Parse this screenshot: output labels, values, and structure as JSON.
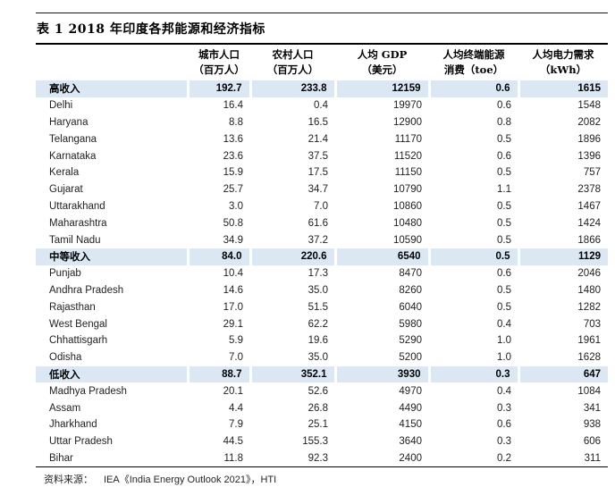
{
  "table": {
    "title": "表 1 2018 年印度各邦能源和经济指标",
    "columns": [
      {
        "line1": "",
        "line2": ""
      },
      {
        "line1": "城市人口",
        "line2": "（百万人）"
      },
      {
        "line1": "农村人口",
        "line2": "（百万人）"
      },
      {
        "line1": "人均 GDP",
        "line2": "（美元）"
      },
      {
        "line1": "人均终端能源",
        "line2": "消费（toe）"
      },
      {
        "line1": "人均电力需求",
        "line2": "（kWh）"
      }
    ],
    "rows": [
      {
        "label": "高收入",
        "values": [
          "192.7",
          "233.8",
          "12159",
          "0.6",
          "1615"
        ],
        "highlight": true
      },
      {
        "label": "Delhi",
        "values": [
          "16.4",
          "0.4",
          "19970",
          "0.6",
          "1548"
        ],
        "highlight": false
      },
      {
        "label": "Haryana",
        "values": [
          "8.8",
          "16.5",
          "12900",
          "0.8",
          "2082"
        ],
        "highlight": false
      },
      {
        "label": "Telangana",
        "values": [
          "13.6",
          "21.4",
          "11170",
          "0.5",
          "1896"
        ],
        "highlight": false
      },
      {
        "label": "Karnataka",
        "values": [
          "23.6",
          "37.5",
          "11520",
          "0.6",
          "1396"
        ],
        "highlight": false
      },
      {
        "label": "Kerala",
        "values": [
          "15.9",
          "17.5",
          "11150",
          "0.5",
          "757"
        ],
        "highlight": false
      },
      {
        "label": "Gujarat",
        "values": [
          "25.7",
          "34.7",
          "10790",
          "1.1",
          "2378"
        ],
        "highlight": false
      },
      {
        "label": "Uttarakhand",
        "values": [
          "3.0",
          "7.0",
          "10860",
          "0.5",
          "1467"
        ],
        "highlight": false
      },
      {
        "label": "Maharashtra",
        "values": [
          "50.8",
          "61.6",
          "10480",
          "0.5",
          "1424"
        ],
        "highlight": false
      },
      {
        "label": "Tamil Nadu",
        "values": [
          "34.9",
          "37.2",
          "10590",
          "0.5",
          "1866"
        ],
        "highlight": false
      },
      {
        "label": "中等收入",
        "values": [
          "84.0",
          "220.6",
          "6540",
          "0.5",
          "1129"
        ],
        "highlight": true
      },
      {
        "label": "Punjab",
        "values": [
          "10.4",
          "17.3",
          "8470",
          "0.6",
          "2046"
        ],
        "highlight": false
      },
      {
        "label": "Andhra Pradesh",
        "values": [
          "14.6",
          "35.0",
          "8260",
          "0.5",
          "1480"
        ],
        "highlight": false
      },
      {
        "label": "Rajasthan",
        "values": [
          "17.0",
          "51.5",
          "6040",
          "0.5",
          "1282"
        ],
        "highlight": false
      },
      {
        "label": "West Bengal",
        "values": [
          "29.1",
          "62.2",
          "5980",
          "0.4",
          "703"
        ],
        "highlight": false
      },
      {
        "label": "Chhattisgarh",
        "values": [
          "5.9",
          "19.6",
          "5290",
          "1.0",
          "1961"
        ],
        "highlight": false
      },
      {
        "label": "Odisha",
        "values": [
          "7.0",
          "35.0",
          "5200",
          "1.0",
          "1628"
        ],
        "highlight": false
      },
      {
        "label": "低收入",
        "values": [
          "88.7",
          "352.1",
          "3930",
          "0.3",
          "647"
        ],
        "highlight": true
      },
      {
        "label": "Madhya Pradesh",
        "values": [
          "20.1",
          "52.6",
          "4970",
          "0.4",
          "1084"
        ],
        "highlight": false
      },
      {
        "label": "Assam",
        "values": [
          "4.4",
          "26.8",
          "4490",
          "0.3",
          "341"
        ],
        "highlight": false
      },
      {
        "label": "Jharkhand",
        "values": [
          "7.9",
          "25.1",
          "4150",
          "0.6",
          "938"
        ],
        "highlight": false
      },
      {
        "label": "Uttar Pradesh",
        "values": [
          "44.5",
          "155.3",
          "3640",
          "0.3",
          "606"
        ],
        "highlight": false
      },
      {
        "label": "Bihar",
        "values": [
          "11.8",
          "92.3",
          "2400",
          "0.2",
          "311"
        ],
        "highlight": false
      }
    ],
    "source_label": "资料来源：",
    "source_value": "IEA《India Energy Outlook 2021》，HTI",
    "colors": {
      "band": "#dbe8f3",
      "rule": "#000000",
      "text": "#1f1f1f"
    }
  }
}
